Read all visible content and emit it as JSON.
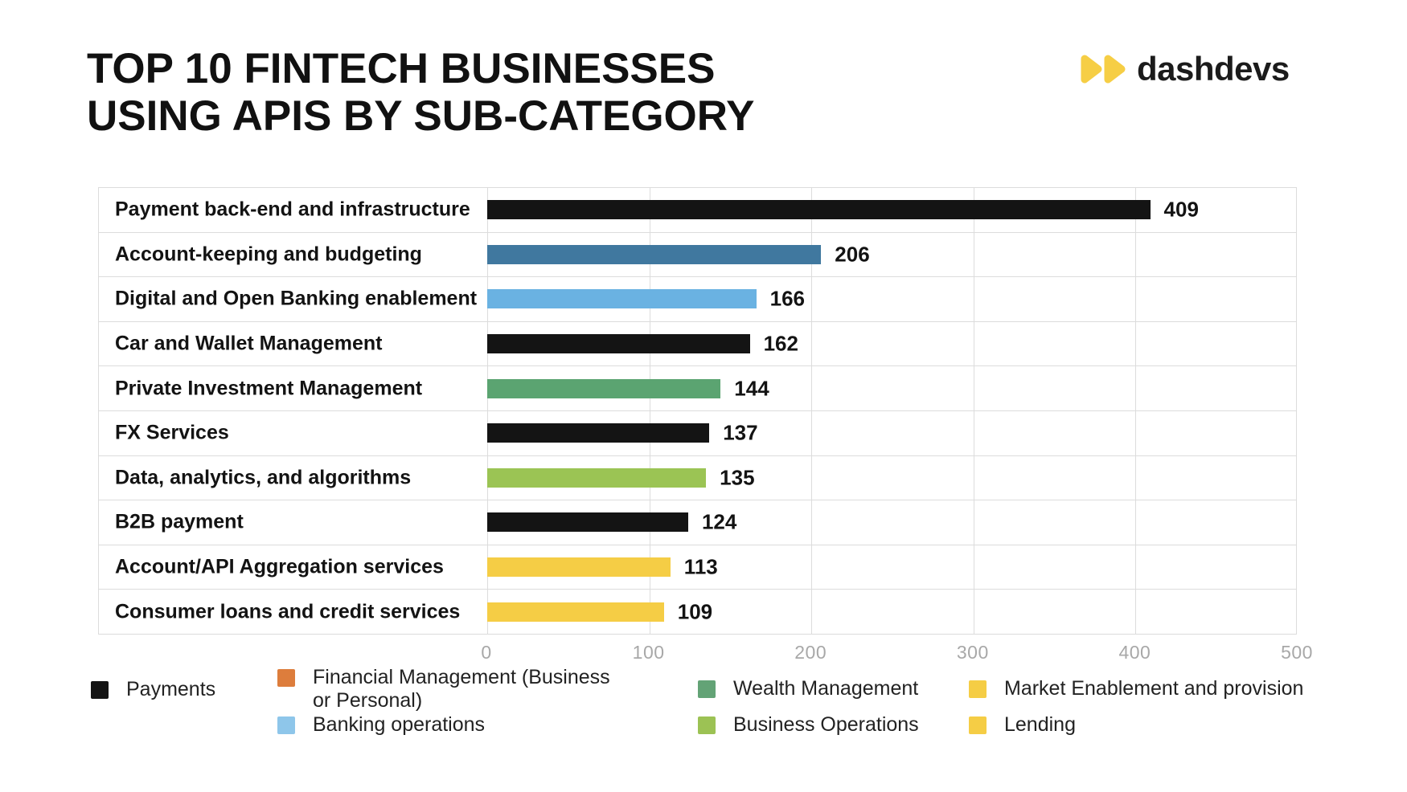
{
  "title": {
    "line1": "TOP 10 FINTECH BUSINESSES",
    "line2": "USING APIS BY SUB-CATEGORY"
  },
  "logo": {
    "brand": "dashdevs",
    "icon": "double-play-triangles",
    "icon_color": "#F6CE45"
  },
  "chart_data": {
    "type": "bar",
    "orientation": "horizontal",
    "title": "Top 10 fintech businesses using APIs by sub-category",
    "categories": [
      "Payment back-end and infrastructure",
      "Account-keeping and budgeting",
      "Digital and Open Banking enablement",
      "Car and Wallet Management",
      "Private Investment Management",
      "FX Services",
      "Data, analytics, and algorithms",
      "B2B payment",
      "Account/API Aggregation services",
      "Consumer loans and credit services"
    ],
    "values": [
      409,
      206,
      166,
      162,
      144,
      137,
      135,
      124,
      113,
      109
    ],
    "bar_colors": [
      "#141414",
      "#40789F",
      "#6AB2E2",
      "#141414",
      "#5BA471",
      "#141414",
      "#9BC454",
      "#141414",
      "#F5CD45",
      "#F5CD45"
    ],
    "xlim": [
      0,
      500
    ],
    "x_ticks": [
      0,
      100,
      200,
      300,
      400,
      500
    ],
    "grid": true,
    "value_labels": true,
    "legend_position": "bottom"
  },
  "legend": {
    "columns": [
      {
        "items": [
          {
            "label": "Payments",
            "color": "#141414"
          }
        ]
      },
      {
        "items": [
          {
            "label": "Financial Management (Business or Personal)",
            "color": "#DD7D3C"
          },
          {
            "label": "Banking operations",
            "color": "#8EC6EA"
          }
        ]
      },
      {
        "items": [
          {
            "label": "Wealth Management",
            "color": "#63A376"
          },
          {
            "label": "Business Operations",
            "color": "#9CC254"
          }
        ]
      },
      {
        "items": [
          {
            "label": "Market Enablement and provision",
            "color": "#F5CD45"
          },
          {
            "label": "Lending",
            "color": "#F5CD45"
          }
        ]
      }
    ]
  },
  "axis_style": {
    "grid_color": "#DCDCDC",
    "tick_color": "#A8A8A8"
  }
}
